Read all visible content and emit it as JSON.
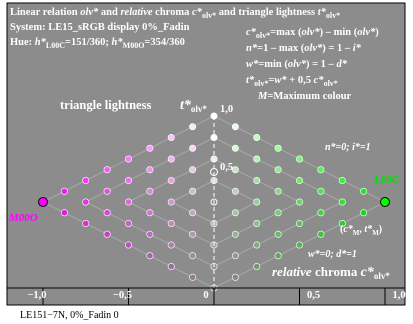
{
  "title": [
    "Linear relation ",
    "olv*",
    " and ",
    "relative",
    " chroma ",
    "c*",
    "olv*",
    " and triangle lightness ",
    "t*",
    "olv*"
  ],
  "system": "System: LE15_sRGB display 0%_Fadin",
  "hue": [
    "Hue: ",
    "h*",
    "L00C",
    "=151/360; ",
    "h*",
    "M00O",
    "=354/360"
  ],
  "formulas": [
    [
      "c*",
      "olv*",
      "=max (",
      "olv*",
      ") – min (",
      "olv*",
      ")"
    ],
    [
      "n*",
      "=1 – max (",
      "olv*",
      ") = 1 – ",
      "i*"
    ],
    [
      "w*",
      "=min (",
      "olv*",
      ") = 1 – ",
      "d*"
    ],
    [
      "t*",
      "olv*",
      "=",
      "w*",
      " + 0,5 ",
      "c*",
      "olv*"
    ],
    [
      "M",
      "=Maximum colour"
    ]
  ],
  "labels": {
    "triangle_lightness": [
      "triangle lightness",
      "t*",
      "olv*"
    ],
    "top_corner": "n*=0; i*=1",
    "right_corner": "L00C",
    "left_corner": "M00O",
    "max_point": [
      "(",
      "c*",
      "M",
      ", ",
      "t*",
      "M",
      ")"
    ],
    "bottom_corner": "w*=0; d*=1",
    "relative_chroma": [
      "relative",
      " chroma ",
      "c*",
      "olv*"
    ]
  },
  "x_ticks": [
    "−1,0",
    "−0,5",
    "0",
    "0,5",
    "1,0"
  ],
  "y_ticks": [
    "1,0",
    "0,5"
  ],
  "footer": "LE151−7N, 0%_Fadin 0"
}
